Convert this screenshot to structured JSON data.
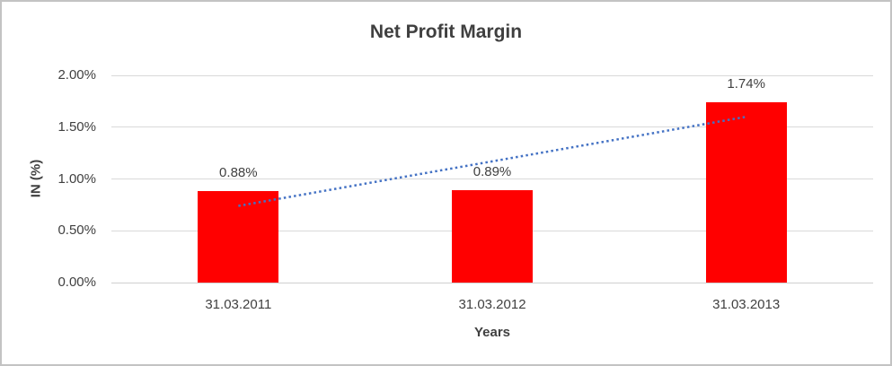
{
  "chart_data": {
    "type": "bar",
    "title": "Net Profit Margin",
    "xlabel": "Years",
    "ylabel": "IN (%)",
    "categories": [
      "31.03.2011",
      "31.03.2012",
      "31.03.2013"
    ],
    "values": [
      0.88,
      0.89,
      1.74
    ],
    "data_labels": [
      "0.88%",
      "0.89%",
      "1.74%"
    ],
    "ylim": [
      0,
      2
    ],
    "yticks": [
      {
        "value": 2.0,
        "label": "2.00%"
      },
      {
        "value": 1.5,
        "label": "1.50%"
      },
      {
        "value": 1.0,
        "label": "1.00%"
      },
      {
        "value": 0.5,
        "label": "0.50%"
      },
      {
        "value": 0.0,
        "label": "0.00%"
      }
    ],
    "grid": true,
    "legend": "none",
    "bar_color": "#FF0000",
    "trendline": {
      "type": "linear",
      "style": "dotted",
      "color": "#4472C4",
      "start_value": 0.74,
      "end_value": 1.6
    },
    "colors": {
      "text": "#404040",
      "title": "#3F3F3F",
      "gridline": "#D9D9D9",
      "background": "#FFFFFF",
      "border": "#C3C3C3"
    }
  }
}
